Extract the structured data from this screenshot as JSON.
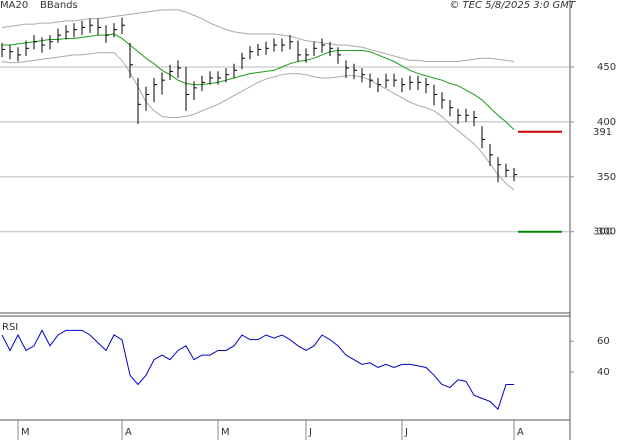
{
  "chart_data": [
    {
      "type": "hlc",
      "credit": "© TEC 5/8/2025 3:0 GMT",
      "categories": [
        null,
        null,
        "M",
        null,
        null,
        null,
        null,
        null,
        null,
        null,
        null,
        null,
        null,
        null,
        null,
        "A",
        null,
        null,
        null,
        null,
        null,
        null,
        null,
        null,
        null,
        null,
        null,
        "M",
        null,
        null,
        null,
        null,
        null,
        null,
        null,
        null,
        null,
        null,
        "J",
        null,
        null,
        null,
        null,
        null,
        null,
        null,
        null,
        null,
        null,
        null,
        "J",
        null,
        null,
        null,
        null,
        null,
        null,
        null,
        null,
        null,
        null,
        null,
        null,
        null,
        "A"
      ],
      "high": [
        472,
        470,
        468,
        474,
        479,
        477,
        479,
        485,
        488,
        490,
        492,
        494,
        494,
        488,
        490,
        495,
        472,
        440,
        432,
        440,
        445,
        452,
        456,
        450,
        437,
        442,
        446,
        446,
        449,
        453,
        463,
        469,
        471,
        473,
        476,
        476,
        479,
        474,
        467,
        473,
        476,
        473,
        468,
        456,
        453,
        449,
        444,
        440,
        444,
        444,
        440,
        442,
        442,
        440,
        434,
        427,
        420,
        412,
        412,
        410,
        396,
        380,
        368,
        362,
        358
      ],
      "low": [
        459,
        457,
        455,
        460,
        466,
        463,
        466,
        472,
        475,
        477,
        479,
        481,
        479,
        472,
        477,
        480,
        440,
        398,
        410,
        418,
        425,
        438,
        440,
        410,
        420,
        428,
        434,
        434,
        436,
        440,
        448,
        457,
        460,
        461,
        464,
        464,
        466,
        455,
        454,
        460,
        463,
        460,
        453,
        440,
        439,
        436,
        431,
        427,
        431,
        432,
        427,
        429,
        429,
        426,
        415,
        412,
        405,
        398,
        400,
        396,
        376,
        360,
        345,
        350,
        346
      ],
      "close": [
        466,
        464,
        461,
        467,
        473,
        470,
        473,
        479,
        482,
        484,
        486,
        488,
        486,
        479,
        484,
        488,
        452,
        416,
        425,
        434,
        438,
        446,
        449,
        425,
        431,
        436,
        440,
        440,
        443,
        447,
        458,
        464,
        466,
        467,
        470,
        470,
        473,
        461,
        461,
        467,
        470,
        467,
        461,
        449,
        447,
        443,
        438,
        434,
        438,
        438,
        434,
        436,
        436,
        434,
        425,
        420,
        413,
        406,
        406,
        404,
        384,
        370,
        361,
        356,
        352
      ],
      "bar_color": "#000000",
      "series": [
        {
          "name": "MA20",
          "color": "#1a9e1a",
          "values": [
            470,
            470,
            471,
            472,
            473,
            474,
            475,
            475,
            476,
            476,
            477,
            478,
            479,
            479,
            480,
            476,
            470,
            464,
            458,
            453,
            447,
            443,
            438,
            435,
            434,
            434,
            435,
            436,
            438,
            440,
            442,
            444,
            445,
            446,
            447,
            450,
            453,
            455,
            456,
            458,
            461,
            464,
            465,
            465,
            465,
            465,
            464,
            461,
            458,
            455,
            451,
            447,
            444,
            442,
            440,
            438,
            435,
            433,
            429,
            425,
            420,
            413,
            406,
            400,
            393
          ]
        },
        {
          "name": "BBands",
          "color": "#aaaaaa",
          "upper": [
            486,
            487,
            488,
            489,
            489,
            490,
            490,
            491,
            492,
            492,
            493,
            494,
            494,
            495,
            496,
            497,
            498,
            499,
            500,
            501,
            502,
            502,
            502,
            500,
            497,
            494,
            490,
            487,
            484,
            482,
            481,
            480,
            480,
            480,
            480,
            479,
            478,
            476,
            474,
            473,
            472,
            471,
            470,
            470,
            469,
            468,
            466,
            464,
            462,
            460,
            458,
            456,
            456,
            455,
            455,
            455,
            455,
            455,
            456,
            457,
            458,
            458,
            457,
            456,
            455
          ],
          "lower": [
            455,
            454,
            454,
            455,
            456,
            457,
            458,
            459,
            460,
            461,
            461,
            462,
            463,
            463,
            463,
            456,
            445,
            432,
            418,
            410,
            405,
            404,
            404,
            405,
            407,
            410,
            413,
            416,
            420,
            424,
            428,
            432,
            436,
            439,
            441,
            443,
            444,
            444,
            443,
            441,
            440,
            440,
            441,
            442,
            442,
            441,
            438,
            434,
            430,
            426,
            422,
            418,
            415,
            413,
            410,
            405,
            398,
            392,
            386,
            380,
            372,
            362,
            352,
            344,
            338
          ]
        }
      ],
      "targets": [
        {
          "value": 391,
          "label": "391",
          "color": "#cc0000"
        },
        {
          "value": 300,
          "label": "300",
          "color": "#008800"
        }
      ],
      "ylim": [
        226,
        511
      ],
      "yticks": [
        300,
        350,
        400,
        450
      ],
      "grid": true
    },
    {
      "type": "line",
      "title": "RSI",
      "color": "#0000c8",
      "values": [
        64,
        54,
        64,
        54,
        57,
        67,
        57,
        64,
        67,
        67,
        67,
        64,
        59,
        54,
        64,
        61,
        38,
        32,
        38,
        48,
        51,
        48,
        54,
        57,
        48,
        51,
        51,
        54,
        54,
        57,
        64,
        61,
        61,
        64,
        62,
        64,
        61,
        57,
        54,
        57,
        64,
        61,
        57,
        51,
        48,
        45,
        46,
        43,
        45,
        43,
        45,
        45,
        44,
        43,
        38,
        32,
        30,
        35,
        34,
        25,
        23,
        21,
        16,
        32,
        32
      ],
      "ylim": [
        9,
        75
      ],
      "yticks": [
        40,
        60
      ],
      "grid": false
    }
  ]
}
